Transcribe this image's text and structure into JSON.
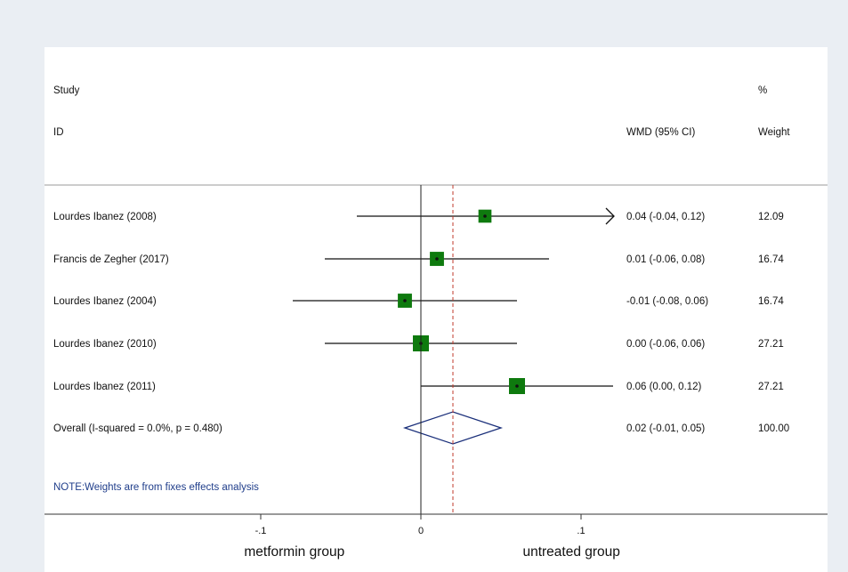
{
  "chart_data": {
    "type": "forest",
    "header": {
      "study_line1": "Study",
      "study_line2": "ID",
      "effect_label": "WMD (95% CI)",
      "weight_line1": "%",
      "weight_line2": "Weight"
    },
    "studies": [
      {
        "label": "Lourdes Ibanez (2008)",
        "estimate": 0.04,
        "lower": -0.04,
        "upper": 0.12,
        "weight": 12.09,
        "ci_text": "0.04 (-0.04, 0.12)",
        "weight_text": "12.09",
        "arrow_right": true
      },
      {
        "label": "Francis de Zegher (2017)",
        "estimate": 0.01,
        "lower": -0.06,
        "upper": 0.08,
        "weight": 16.74,
        "ci_text": "0.01 (-0.06, 0.08)",
        "weight_text": "16.74",
        "arrow_right": false
      },
      {
        "label": "Lourdes Ibanez (2004)",
        "estimate": -0.01,
        "lower": -0.08,
        "upper": 0.06,
        "weight": 16.74,
        "ci_text": "-0.01 (-0.08, 0.06)",
        "weight_text": "16.74",
        "arrow_right": false
      },
      {
        "label": "Lourdes Ibanez (2010)",
        "estimate": 0.0,
        "lower": -0.06,
        "upper": 0.06,
        "weight": 27.21,
        "ci_text": "0.00 (-0.06, 0.06)",
        "weight_text": "27.21",
        "arrow_right": false
      },
      {
        "label": "Lourdes Ibanez (2011)",
        "estimate": 0.06,
        "lower": 0.0,
        "upper": 0.12,
        "weight": 27.21,
        "ci_text": "0.06 (0.00, 0.12)",
        "weight_text": "27.21",
        "arrow_right": false
      }
    ],
    "overall": {
      "label": "Overall  (I-squared = 0.0%, p = 0.480)",
      "estimate": 0.02,
      "lower": -0.01,
      "upper": 0.05,
      "ci_text": "0.02 (-0.01, 0.05)",
      "weight_text": "100.00"
    },
    "note": "NOTE:Weights are from fixes effects analysis",
    "x_ticks": [
      {
        "value": -0.1,
        "label": "-.1"
      },
      {
        "value": 0,
        "label": "0"
      },
      {
        "value": 0.1,
        "label": ".1"
      }
    ],
    "xlim": [
      -0.235,
      0.12
    ],
    "left_group_label": "metformin group",
    "right_group_label": "untreated group",
    "colors": {
      "box": "#0e7a0e",
      "diamond": "#1a2f7a",
      "overall_line": "#c0392b",
      "note": "#1f3d8a",
      "background": "#eaeef3"
    }
  }
}
